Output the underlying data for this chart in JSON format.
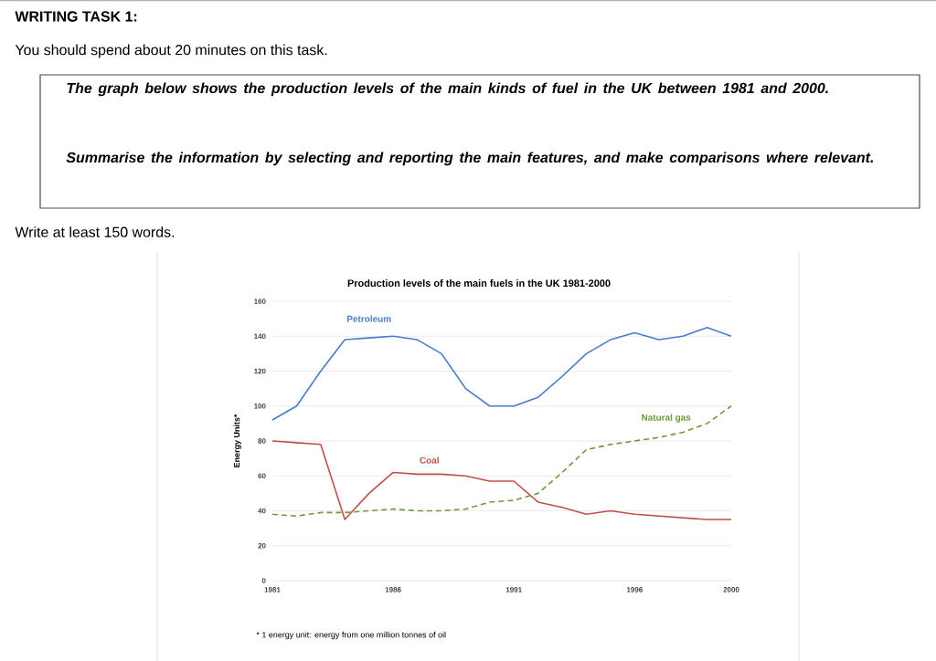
{
  "chart_data": {
    "type": "line",
    "title": "Production levels of the main fuels in the UK 1981-2000",
    "ylabel": "Energy Units*",
    "annotations": [
      "WRITING TASK 1:",
      "You should spend about 20 minutes on this task.",
      "The graph below shows the production levels of the main kinds of fuel in the UK between 1981 and 2000.",
      "Summarise the information by selecting and reporting the main features, and make comparisons where relevant.",
      "Write at least 150 words.",
      "* 1 energy unit: energy from one million tonnes of oil"
    ],
    "x": [
      1981,
      1982,
      1983,
      1984,
      1985,
      1986,
      1987,
      1988,
      1989,
      1990,
      1991,
      1992,
      1993,
      1994,
      1995,
      1996,
      1997,
      1998,
      1999,
      2000
    ],
    "series": [
      {
        "name": "Petroleum",
        "color": "#4a7cc9",
        "values": [
          92,
          100,
          120,
          138,
          139,
          140,
          138,
          130,
          110,
          100,
          100,
          105,
          117,
          130,
          138,
          142,
          138,
          140,
          145,
          140
        ]
      },
      {
        "name": "Coal",
        "color": "#c0504d",
        "values": [
          80,
          79,
          78,
          35,
          50,
          62,
          61,
          61,
          60,
          57,
          57,
          45,
          42,
          38,
          40,
          38,
          37,
          36,
          35,
          35
        ]
      },
      {
        "name": "Natural gas",
        "color": "#6a9a3a",
        "line_style": "dashed",
        "values": [
          38,
          37,
          39,
          39,
          40,
          41,
          40,
          40,
          41,
          45,
          46,
          50,
          62,
          75,
          78,
          80,
          82,
          85,
          90,
          100
        ]
      }
    ],
    "xlim": [
      1981,
      2000
    ],
    "xticks": [
      1981,
      1986,
      1991,
      1996,
      2000
    ],
    "ylim": [
      0,
      160
    ],
    "yticks": [
      0,
      20,
      40,
      60,
      80,
      100,
      120,
      140,
      160
    ],
    "grid": "y"
  }
}
